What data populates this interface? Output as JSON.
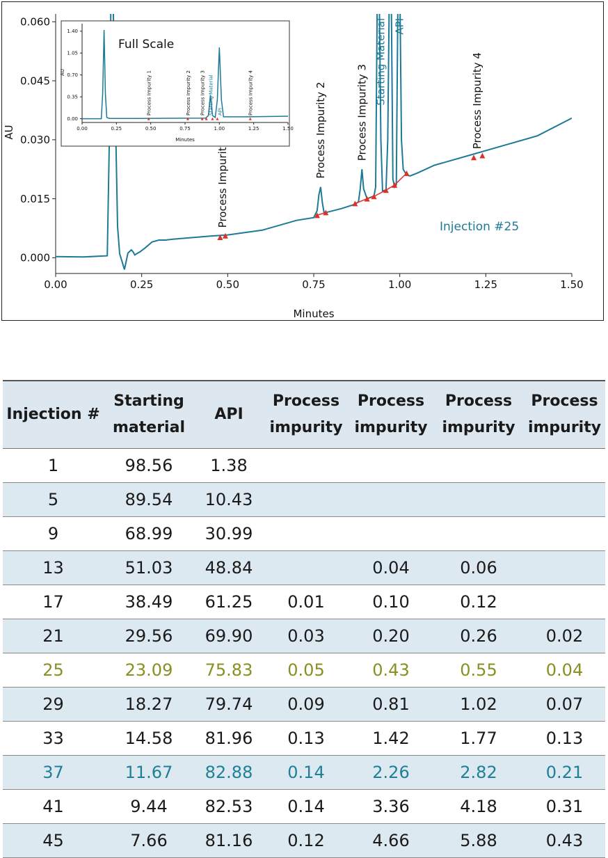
{
  "chart_data": [
    {
      "type": "line",
      "title": "",
      "xlabel": "Minutes",
      "ylabel": "AU",
      "xlim": [
        0.0,
        1.5
      ],
      "ylim": [
        -0.004,
        0.062
      ],
      "xticks": [
        "0.00",
        "0.25",
        "0.50",
        "0.75",
        "1.00",
        "1.25",
        "1.50"
      ],
      "yticks": [
        "0.000",
        "0.015",
        "0.030",
        "0.045",
        "0.060"
      ],
      "line_color": "#1d7a96",
      "annotation": "Injection #25",
      "series": [
        {
          "x": [
            0.0,
            0.08,
            0.15,
            0.158,
            0.162,
            0.166,
            0.17,
            0.175,
            0.18,
            0.186,
            0.193,
            0.2,
            0.21,
            0.22,
            0.225,
            0.23,
            0.235,
            0.245,
            0.26,
            0.28,
            0.3,
            0.32,
            0.34,
            0.38,
            0.45,
            0.5,
            0.6,
            0.7,
            0.75,
            0.76,
            0.765,
            0.77,
            0.775,
            0.78,
            0.79,
            0.83,
            0.87,
            0.88,
            0.885,
            0.89,
            0.895,
            0.905,
            0.925,
            0.93,
            0.935,
            0.94,
            0.945,
            0.95,
            0.96,
            0.965,
            0.97,
            0.975,
            0.98,
            0.985,
            0.99,
            0.995,
            1.0,
            1.005,
            1.01,
            1.02,
            1.03,
            1.05,
            1.1,
            1.2,
            1.3,
            1.4,
            1.5
          ],
          "y": [
            0.0003,
            0.0002,
            0.0005,
            0.04,
            0.08,
            0.08,
            0.04,
            0.03,
            0.008,
            0.001,
            -0.001,
            -0.003,
            0.0012,
            0.002,
            0.0015,
            0.0007,
            0.001,
            0.0015,
            0.0025,
            0.004,
            0.0045,
            0.0045,
            0.0047,
            0.005,
            0.0055,
            0.0058,
            0.007,
            0.0095,
            0.0102,
            0.012,
            0.016,
            0.018,
            0.014,
            0.0115,
            0.0116,
            0.0125,
            0.0136,
            0.0142,
            0.0175,
            0.0225,
            0.0175,
            0.015,
            0.0157,
            0.018,
            0.07,
            0.07,
            0.03,
            0.017,
            0.0172,
            0.03,
            0.07,
            0.07,
            0.02,
            0.018,
            0.0185,
            0.07,
            0.07,
            0.03,
            0.0225,
            0.021,
            0.0208,
            0.0215,
            0.0235,
            0.026,
            0.0285,
            0.031,
            0.0355
          ]
        }
      ],
      "annotations": [
        {
          "label": "Process Impurity 1",
          "x": 0.485,
          "y": 0.0055
        },
        {
          "label": "Process Impurity 2",
          "x": 0.77,
          "y": 0.018
        },
        {
          "label": "Process Impurity 3",
          "x": 0.89,
          "y": 0.0225
        },
        {
          "label": "Starting Material",
          "x": 0.945,
          "y": 0.062
        },
        {
          "label": "API",
          "x": 1.0,
          "y": 0.062
        },
        {
          "label": "Process Impurity 4",
          "x": 1.225,
          "y": 0.0255
        }
      ],
      "markers": [
        {
          "x": 0.478,
          "y": 0.0052
        },
        {
          "x": 0.493,
          "y": 0.0056
        },
        {
          "x": 0.76,
          "y": 0.0108
        },
        {
          "x": 0.785,
          "y": 0.0115
        },
        {
          "x": 0.87,
          "y": 0.0138
        },
        {
          "x": 0.905,
          "y": 0.015
        },
        {
          "x": 0.925,
          "y": 0.0156
        },
        {
          "x": 0.96,
          "y": 0.0172
        },
        {
          "x": 0.985,
          "y": 0.0185
        },
        {
          "x": 1.02,
          "y": 0.0215
        },
        {
          "x": 1.215,
          "y": 0.0255
        },
        {
          "x": 1.24,
          "y": 0.026
        }
      ]
    },
    {
      "type": "line",
      "title": "Full Scale",
      "xlabel": "Minutes",
      "ylabel": "AU",
      "xlim": [
        0.0,
        1.5
      ],
      "ylim": [
        -0.06,
        1.52
      ],
      "xticks": [
        "0.00",
        "0.25",
        "0.50",
        "0.75",
        "1.00",
        "1.25",
        "1.50"
      ],
      "yticks": [
        "0.00",
        "0.35",
        "0.70",
        "1.05",
        "1.40"
      ],
      "line_color": "#1d7a96",
      "series": [
        {
          "x": [
            0.0,
            0.14,
            0.15,
            0.16,
            0.17,
            0.18,
            0.2,
            0.4,
            0.9,
            0.92,
            0.935,
            0.95,
            0.97,
            0.985,
            1.0,
            1.015,
            1.03,
            1.2,
            1.5
          ],
          "y": [
            0.0,
            0.0,
            0.4,
            1.42,
            0.4,
            0.02,
            0.005,
            0.005,
            0.01,
            0.05,
            0.38,
            0.05,
            0.02,
            0.3,
            1.14,
            0.3,
            0.03,
            0.03,
            0.04
          ]
        }
      ],
      "annotations": [
        {
          "label": "Process Impurity 1",
          "x": 0.485
        },
        {
          "label": "Process Impurity 2",
          "x": 0.77
        },
        {
          "label": "Process Impurity 3",
          "x": 0.875
        },
        {
          "label": "Starting Material",
          "x": 0.935
        },
        {
          "label": "API",
          "x": 1.0
        },
        {
          "label": "Process Impurity 4",
          "x": 1.225
        }
      ],
      "markers": [
        {
          "x": 0.485,
          "y": 0.0
        },
        {
          "x": 0.77,
          "y": 0.0
        },
        {
          "x": 0.875,
          "y": 0.0
        },
        {
          "x": 0.905,
          "y": 0.0
        },
        {
          "x": 0.95,
          "y": 0.0
        },
        {
          "x": 0.985,
          "y": 0.0
        },
        {
          "x": 1.225,
          "y": 0.0
        }
      ]
    },
    {
      "type": "table",
      "columns": [
        [
          "Injection #"
        ],
        [
          "Starting",
          "material"
        ],
        [
          "API"
        ],
        [
          "Process",
          "impurity"
        ],
        [
          "Process",
          "impurity"
        ],
        [
          "Process",
          "impurity"
        ],
        [
          "Process",
          "impurity"
        ]
      ],
      "rows": [
        [
          "1",
          "98.56",
          "1.38",
          "",
          "",
          "",
          ""
        ],
        [
          "5",
          "89.54",
          "10.43",
          "",
          "",
          "",
          ""
        ],
        [
          "9",
          "68.99",
          "30.99",
          "",
          "",
          "",
          ""
        ],
        [
          "13",
          "51.03",
          "48.84",
          "",
          "0.04",
          "0.06",
          ""
        ],
        [
          "17",
          "38.49",
          "61.25",
          "0.01",
          "0.10",
          "0.12",
          ""
        ],
        [
          "21",
          "29.56",
          "69.90",
          "0.03",
          "0.20",
          "0.26",
          "0.02"
        ],
        [
          "25",
          "23.09",
          "75.83",
          "0.05",
          "0.43",
          "0.55",
          "0.04"
        ],
        [
          "29",
          "18.27",
          "79.74",
          "0.09",
          "0.81",
          "1.02",
          "0.07"
        ],
        [
          "33",
          "14.58",
          "81.96",
          "0.13",
          "1.42",
          "1.77",
          "0.13"
        ],
        [
          "37",
          "11.67",
          "82.88",
          "0.14",
          "2.26",
          "2.82",
          "0.21"
        ],
        [
          "41",
          "9.44",
          "82.53",
          "0.14",
          "3.36",
          "4.18",
          "0.31"
        ],
        [
          "45",
          "7.66",
          "81.16",
          "0.12",
          "4.66",
          "5.88",
          "0.43"
        ]
      ],
      "highlighted_rows": {
        "25": "#8a8f22",
        "37": "#1f7f96"
      }
    }
  ]
}
